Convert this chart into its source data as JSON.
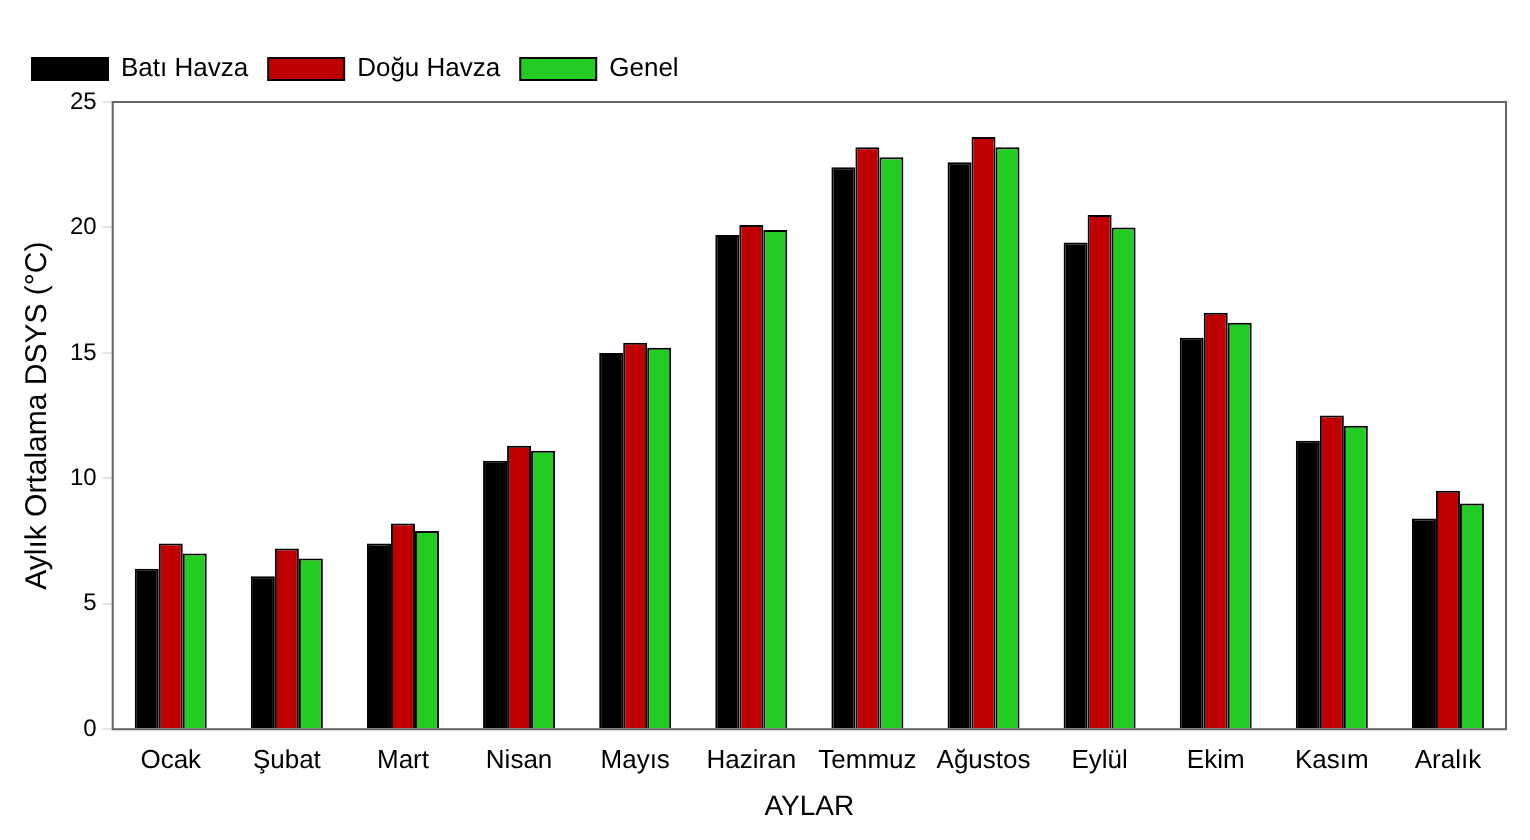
{
  "chart_data": {
    "type": "bar",
    "xlabel": "AYLAR",
    "ylabel": "Aylık Ortalama DSYS (°C)",
    "categories": [
      "Ocak",
      "Şubat",
      "Mart",
      "Nisan",
      "Mayıs",
      "Haziran",
      "Temmuz",
      "Ağustos",
      "Eylül",
      "Ekim",
      "Kasım",
      "Aralık"
    ],
    "series": [
      {
        "name": "Batı Havza",
        "color": "#000000",
        "values": [
          6.4,
          6.1,
          7.4,
          10.7,
          15.0,
          19.7,
          22.4,
          22.6,
          19.4,
          15.6,
          11.5,
          8.4
        ]
      },
      {
        "name": "Doğu Havza",
        "color": "#c00000",
        "values": [
          7.4,
          7.2,
          8.2,
          11.3,
          15.4,
          20.1,
          23.2,
          23.6,
          20.5,
          16.6,
          12.5,
          9.5
        ]
      },
      {
        "name": "Genel",
        "color": "#22cc22",
        "values": [
          7.0,
          6.8,
          7.9,
          11.1,
          15.2,
          19.9,
          22.8,
          23.2,
          20.0,
          16.2,
          12.1,
          9.0
        ]
      }
    ],
    "ylim": [
      0,
      25
    ],
    "yticks": [
      0,
      5,
      10,
      15,
      20,
      25
    ],
    "grid": false,
    "legend": "top left"
  }
}
